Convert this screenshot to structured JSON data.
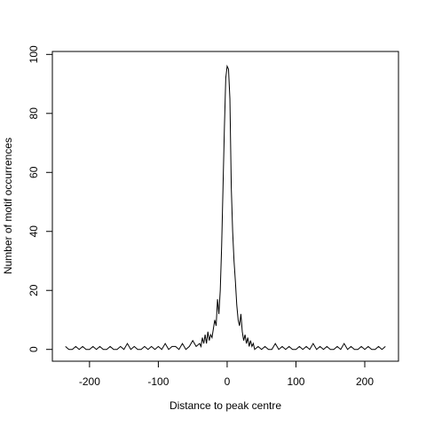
{
  "chart_data": {
    "type": "line",
    "xlabel": "Distance to peak centre",
    "ylabel": "Number of motif occurrences",
    "x": [
      -235,
      -230,
      -225,
      -220,
      -215,
      -210,
      -205,
      -200,
      -195,
      -190,
      -185,
      -180,
      -175,
      -170,
      -165,
      -160,
      -155,
      -150,
      -145,
      -140,
      -135,
      -130,
      -125,
      -120,
      -115,
      -110,
      -105,
      -100,
      -95,
      -90,
      -85,
      -80,
      -75,
      -70,
      -65,
      -60,
      -55,
      -50,
      -45,
      -40,
      -38,
      -36,
      -34,
      -32,
      -30,
      -28,
      -26,
      -24,
      -22,
      -20,
      -18,
      -16,
      -14,
      -12,
      -10,
      -8,
      -6,
      -4,
      -2,
      0,
      2,
      4,
      6,
      8,
      10,
      12,
      14,
      16,
      18,
      20,
      22,
      24,
      26,
      28,
      30,
      32,
      34,
      36,
      38,
      40,
      45,
      50,
      55,
      60,
      65,
      70,
      75,
      80,
      85,
      90,
      95,
      100,
      105,
      110,
      115,
      120,
      125,
      130,
      135,
      140,
      145,
      150,
      155,
      160,
      165,
      170,
      175,
      180,
      185,
      190,
      195,
      200,
      205,
      210,
      215,
      220,
      225,
      230
    ],
    "series": [
      {
        "color": "#000000",
        "values": [
          1,
          0,
          0,
          1,
          0,
          1,
          0,
          0,
          1,
          0,
          1,
          0,
          0,
          1,
          0,
          0,
          1,
          0,
          2,
          0,
          1,
          0,
          0,
          1,
          0,
          1,
          0,
          1,
          0,
          2,
          0,
          1,
          1,
          0,
          2,
          0,
          1,
          3,
          1,
          2,
          1,
          4,
          2,
          5,
          2,
          6,
          3,
          5,
          4,
          7,
          10,
          8,
          17,
          12,
          20,
          35,
          55,
          75,
          92,
          96,
          95,
          85,
          55,
          40,
          30,
          23,
          15,
          10,
          8,
          12,
          6,
          3,
          5,
          2,
          4,
          1,
          3,
          1,
          2,
          0,
          1,
          0,
          1,
          0,
          0,
          2,
          0,
          1,
          0,
          1,
          0,
          0,
          1,
          0,
          1,
          0,
          2,
          0,
          1,
          0,
          1,
          0,
          0,
          1,
          0,
          2,
          0,
          1,
          0,
          0,
          1,
          0,
          1,
          0,
          0,
          1,
          0,
          1
        ]
      }
    ],
    "xlim": [
      -254,
      249
    ],
    "ylim": [
      -4,
      101
    ],
    "xticks": [
      -200,
      -100,
      0,
      100,
      200
    ],
    "yticks": [
      0,
      20,
      40,
      60,
      80,
      100
    ]
  }
}
